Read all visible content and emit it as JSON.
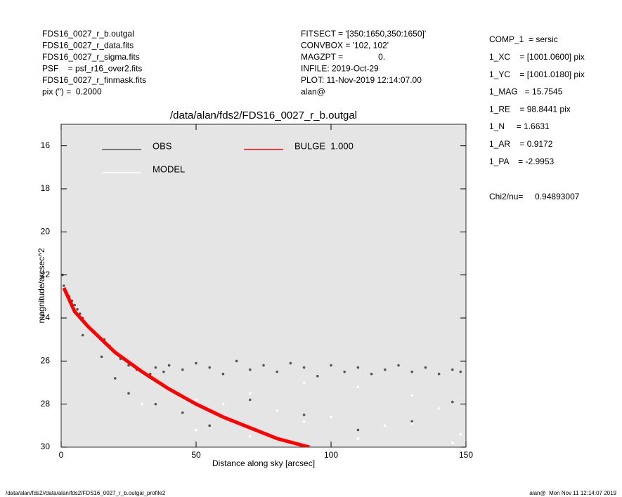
{
  "header": {
    "left": [
      "FDS16_0027_r_b.outgal",
      "FDS16_0027_r_data.fits",
      "FDS16_0027_r_sigma.fits",
      "PSF    = psf_r16_over2.fits",
      "FDS16_0027_r_finmask.fits",
      "pix (\") =  0.2000"
    ],
    "center": [
      "FITSECT = '[350:1650,350:1650]'",
      "CONVBOX = '102, 102'",
      "MAGZPT =               0.",
      "INFILE: 2019-Oct-29",
      "PLOT: 11-Nov-2019 12:14:07.00",
      "alan@"
    ],
    "right": [
      "COMP_1  = sersic",
      "1_XC    = [1001.0600] pix",
      "1_YC    = [1001.0180] pix",
      "1_MAG   = 15.7545",
      "1_RE    = 98.8441 pix",
      "1_N     = 1.6631",
      "1_AR    = 0.9172",
      "1_PA    = -2.9953"
    ],
    "chi2": "Chi2/nu=     0.94893007"
  },
  "footer": {
    "left": "/data/alan/fds2//data/alan/fds2/FDS16_0027_r_b.outgal_profile2",
    "right": "alan@  Mon Nov 11 12:14:07 2019"
  },
  "chart_data": {
    "type": "scatter",
    "title": "/data/alan/fds2/FDS16_0027_r_b.outgal",
    "x_label": "Distance along sky [arcsec]",
    "y_label": "magnitude/arcsec^2",
    "xlim": [
      0,
      150
    ],
    "xticks": [
      0,
      50,
      100,
      150
    ],
    "ylim": [
      15,
      30
    ],
    "yticks": [
      16,
      18,
      20,
      22,
      24,
      26,
      28,
      30
    ],
    "invert_y": true,
    "series": [
      {
        "name": "OBS",
        "color": "#555555",
        "mark": "points",
        "x": [
          0.5,
          1,
          2,
          3,
          4,
          5,
          6,
          7,
          8,
          10,
          12,
          14,
          16,
          18,
          20,
          22,
          25,
          28,
          30,
          33,
          35,
          38,
          40,
          45,
          50,
          55,
          60,
          65,
          70,
          75,
          80,
          85,
          90,
          95,
          100,
          105,
          110,
          115,
          120,
          125,
          130,
          135,
          140,
          145,
          148,
          8,
          15,
          20,
          25,
          35,
          45,
          55,
          70,
          90,
          110,
          130,
          145
        ],
        "values": [
          22.0,
          22.5,
          22.8,
          23.0,
          23.2,
          23.4,
          23.6,
          23.8,
          24.0,
          24.3,
          24.6,
          24.9,
          25.0,
          25.3,
          25.6,
          25.9,
          26.2,
          26.4,
          26.5,
          26.6,
          26.3,
          26.5,
          26.2,
          26.4,
          26.1,
          26.3,
          26.6,
          26.0,
          26.4,
          26.2,
          26.5,
          26.1,
          26.3,
          26.7,
          26.2,
          26.5,
          26.3,
          26.6,
          26.4,
          26.2,
          26.5,
          26.3,
          26.6,
          26.4,
          26.5,
          24.8,
          25.8,
          26.8,
          27.5,
          28.0,
          28.4,
          29.0,
          27.8,
          28.5,
          29.2,
          28.8,
          27.9
        ]
      },
      {
        "name": "MODEL",
        "color": "#ffffff",
        "mark": "points",
        "x": [
          5,
          10,
          20,
          30,
          40,
          50,
          60,
          70,
          80,
          90,
          100,
          110,
          120,
          130,
          140,
          148,
          30,
          50,
          70,
          90,
          110,
          130,
          145
        ],
        "values": [
          23.5,
          24.3,
          25.6,
          26.6,
          27.2,
          27.8,
          28.0,
          27.5,
          28.3,
          27.0,
          28.6,
          27.2,
          29.0,
          27.6,
          28.2,
          29.4,
          28.0,
          29.2,
          29.5,
          28.8,
          29.6,
          28.9,
          29.8
        ]
      },
      {
        "name": "BULGE  1.000",
        "color": "#ff0000",
        "mark": "line",
        "x": [
          1,
          5,
          10,
          20,
          30,
          40,
          50,
          60,
          70,
          80,
          92
        ],
        "values": [
          22.6,
          23.7,
          24.4,
          25.6,
          26.5,
          27.3,
          28.0,
          28.6,
          29.1,
          29.6,
          30.0
        ]
      }
    ]
  }
}
